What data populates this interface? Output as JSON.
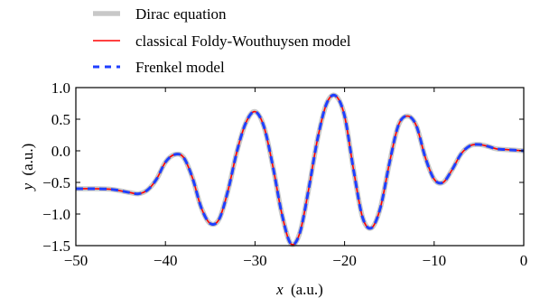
{
  "chart_data": {
    "type": "line",
    "title": "",
    "xlabel_var": "x",
    "xlabel_unit": "(a.u.)",
    "ylabel_var": "y",
    "ylabel_unit": "(a.u.)",
    "xlim": [
      -50,
      0
    ],
    "ylim": [
      -1.5,
      1.0
    ],
    "xticks": [
      -50,
      -40,
      -30,
      -20,
      -10,
      0
    ],
    "yticks": [
      1.0,
      0.5,
      0.0,
      -0.5,
      -1.0,
      -1.5
    ],
    "xtick_labels": [
      "−50",
      "−40",
      "−30",
      "−20",
      "−10",
      "0"
    ],
    "ytick_labels": [
      "1.0",
      "0.5",
      "0.0",
      "−0.5",
      "−1.0",
      "−1.5"
    ],
    "grid": false,
    "legend_placement": "top-left, above plot",
    "x": [
      -50,
      -48,
      -46,
      -44,
      -43,
      -42,
      -41,
      -40,
      -39,
      -38,
      -37,
      -36,
      -35,
      -34,
      -33,
      -32,
      -31,
      -30,
      -29,
      -28,
      -27,
      -26,
      -25,
      -24,
      -23,
      -22,
      -21,
      -20,
      -19,
      -18,
      -17,
      -16,
      -15,
      -14,
      -13,
      -12,
      -11,
      -10,
      -9,
      -8,
      -7,
      -6,
      -5,
      -4,
      -3,
      -2,
      -1,
      0
    ],
    "series": [
      {
        "name": "Dirac equation",
        "color": "#c8c8c8",
        "style": "solid-thick",
        "values": [
          -0.6,
          -0.6,
          -0.61,
          -0.66,
          -0.68,
          -0.62,
          -0.45,
          -0.18,
          -0.06,
          -0.1,
          -0.42,
          -0.9,
          -1.15,
          -1.08,
          -0.62,
          0.0,
          0.45,
          0.62,
          0.38,
          -0.25,
          -1.0,
          -1.47,
          -1.3,
          -0.6,
          0.2,
          0.75,
          0.87,
          0.55,
          -0.3,
          -1.05,
          -1.22,
          -0.9,
          -0.2,
          0.4,
          0.55,
          0.4,
          -0.1,
          -0.45,
          -0.5,
          -0.3,
          -0.05,
          0.08,
          0.1,
          0.07,
          0.03,
          0.02,
          0.01,
          0.0
        ]
      },
      {
        "name": "classical Foldy-Wouthuysen model",
        "color": "#ff0000",
        "style": "solid",
        "values": [
          -0.6,
          -0.6,
          -0.61,
          -0.66,
          -0.68,
          -0.62,
          -0.45,
          -0.18,
          -0.06,
          -0.1,
          -0.42,
          -0.9,
          -1.15,
          -1.08,
          -0.62,
          0.0,
          0.45,
          0.62,
          0.38,
          -0.25,
          -1.0,
          -1.47,
          -1.3,
          -0.6,
          0.2,
          0.75,
          0.87,
          0.55,
          -0.3,
          -1.05,
          -1.22,
          -0.9,
          -0.2,
          0.4,
          0.55,
          0.4,
          -0.1,
          -0.45,
          -0.5,
          -0.3,
          -0.05,
          0.08,
          0.1,
          0.07,
          0.03,
          0.02,
          0.01,
          0.0
        ]
      },
      {
        "name": "Frenkel model",
        "color": "#1f3fff",
        "style": "dashed",
        "values": [
          -0.6,
          -0.6,
          -0.61,
          -0.66,
          -0.68,
          -0.62,
          -0.45,
          -0.18,
          -0.06,
          -0.1,
          -0.42,
          -0.9,
          -1.15,
          -1.08,
          -0.62,
          0.0,
          0.45,
          0.62,
          0.38,
          -0.25,
          -1.0,
          -1.47,
          -1.3,
          -0.6,
          0.2,
          0.75,
          0.87,
          0.55,
          -0.3,
          -1.05,
          -1.22,
          -0.9,
          -0.2,
          0.4,
          0.55,
          0.4,
          -0.1,
          -0.45,
          -0.5,
          -0.3,
          -0.05,
          0.08,
          0.1,
          0.07,
          0.03,
          0.02,
          0.01,
          0.0
        ]
      }
    ]
  }
}
